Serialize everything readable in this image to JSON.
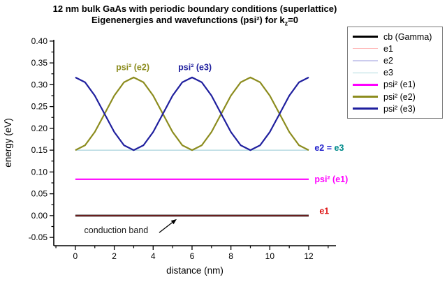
{
  "title": {
    "line1": "12 nm bulk GaAs with periodic boundary conditions (superlattice)",
    "line2_pre": "Eigenenergies and wavefunctions (psi²) for k",
    "line2_sub": "z",
    "line2_post": "=0"
  },
  "legend": {
    "entries": [
      {
        "label": "cb (Gamma)",
        "color": "#000000",
        "thickness": 2.6
      },
      {
        "label": "e1",
        "color": "#ffbdbd",
        "thickness": 1.2
      },
      {
        "label": "e2",
        "color": "#ccccee",
        "thickness": 1.2
      },
      {
        "label": "e3",
        "color": "#aedade",
        "thickness": 1.2
      },
      {
        "label": "psi² (e1)",
        "color": "#ff00ff",
        "thickness": 2.6
      },
      {
        "label": "psi² (e2)",
        "color": "#8c8c1e",
        "thickness": 2.6
      },
      {
        "label": "psi² (e3)",
        "color": "#1f1f9e",
        "thickness": 2.6
      }
    ]
  },
  "chart_data": {
    "type": "line",
    "title": "12 nm bulk GaAs with periodic boundary conditions (superlattice) — Eigenenergies and wavefunctions (psi²) for kz=0",
    "xlabel": "distance (nm)",
    "ylabel": "energy (eV)",
    "xlim": [
      -1.11,
      13.4
    ],
    "ylim": [
      -0.069,
      0.403
    ],
    "grid": false,
    "legend_position": "top-right-outside",
    "x_ticks": {
      "major": [
        0,
        2,
        4,
        6,
        8,
        10,
        12
      ],
      "major_labels": [
        "0",
        "2",
        "4",
        "6",
        "8",
        "10",
        "12"
      ],
      "minor": [
        -1,
        1,
        3,
        5,
        7,
        9,
        11,
        13
      ]
    },
    "y_ticks": {
      "major": [
        0.4,
        0.35,
        0.3,
        0.25,
        0.2,
        0.15,
        0.1,
        0.05,
        0.0,
        -0.05
      ],
      "major_labels": [
        "0.40",
        "0.35",
        "0.30",
        "0.25",
        "0.20",
        "0.15",
        "0.10",
        "0.05",
        "0.00",
        "-0.05"
      ],
      "minor": [
        0.375,
        0.325,
        0.275,
        0.225,
        0.175,
        0.125,
        0.075,
        0.025,
        -0.025
      ]
    },
    "series": [
      {
        "name": "cb (Gamma)",
        "color": "#000000",
        "plot_width": 2.6,
        "x": [
          0,
          12
        ],
        "y": [
          0.0,
          0.0
        ]
      },
      {
        "name": "e1",
        "color": "#ffbdbd",
        "plot_color": "#b03030",
        "plot_width": 1.1,
        "x": [
          0,
          12
        ],
        "y": [
          0.0,
          0.0
        ]
      },
      {
        "name": "e2",
        "color": "#ccccee",
        "plot_width": 1.2,
        "x": [
          0,
          12
        ],
        "y": [
          0.15,
          0.15
        ]
      },
      {
        "name": "e3",
        "color": "#aedade",
        "plot_width": 1.2,
        "x": [
          0,
          12
        ],
        "y": [
          0.15,
          0.15
        ]
      },
      {
        "name": "psi² (e1)",
        "color": "#ff00ff",
        "plot_width": 2.2,
        "x": [
          0,
          12
        ],
        "y": [
          0.0833,
          0.0833
        ]
      },
      {
        "name": "psi² (e2)",
        "color": "#8c8c1e",
        "plot_width": 2.2,
        "x": [
          0,
          0.5,
          1,
          1.5,
          2,
          2.5,
          3,
          3.5,
          4,
          4.5,
          5,
          5.5,
          6,
          6.5,
          7,
          7.5,
          8,
          8.5,
          9,
          9.5,
          10,
          10.5,
          11,
          11.5,
          12
        ],
        "y": [
          0.15,
          0.1612,
          0.1917,
          0.2333,
          0.275,
          0.3055,
          0.3167,
          0.3055,
          0.275,
          0.2333,
          0.1917,
          0.1612,
          0.15,
          0.1612,
          0.1917,
          0.2333,
          0.275,
          0.3055,
          0.3167,
          0.3055,
          0.275,
          0.2333,
          0.1917,
          0.1612,
          0.15
        ]
      },
      {
        "name": "psi² (e3)",
        "color": "#1f1f9e",
        "plot_width": 2.2,
        "x": [
          0,
          0.5,
          1,
          1.5,
          2,
          2.5,
          3,
          3.5,
          4,
          4.5,
          5,
          5.5,
          6,
          6.5,
          7,
          7.5,
          8,
          8.5,
          9,
          9.5,
          10,
          10.5,
          11,
          11.5,
          12
        ],
        "y": [
          0.3167,
          0.3055,
          0.275,
          0.2333,
          0.1917,
          0.1612,
          0.15,
          0.1612,
          0.1917,
          0.2333,
          0.275,
          0.3055,
          0.3167,
          0.3055,
          0.275,
          0.2333,
          0.1917,
          0.1612,
          0.15,
          0.1612,
          0.1917,
          0.2333,
          0.275,
          0.3055,
          0.3167
        ]
      }
    ],
    "annotations": [
      {
        "text": "psi² (e2)",
        "x": 2.95,
        "y": 0.341,
        "color": "#8c8c1e",
        "bold": true,
        "anchor": "middle"
      },
      {
        "text": "psi² (e3)",
        "x": 6.15,
        "y": 0.341,
        "color": "#1f1f9e",
        "bold": true,
        "anchor": "middle"
      },
      {
        "parts": [
          {
            "text": "e2 ",
            "color": "#2222cc"
          },
          {
            "text": "= ",
            "color": "#2222cc"
          },
          {
            "text": "e3",
            "color": "#008b8b"
          }
        ],
        "x": 12.3,
        "y": 0.156,
        "bold": true,
        "anchor": "start"
      },
      {
        "text": "psi² (e1)",
        "x": 12.3,
        "y": 0.084,
        "color": "#ff00ff",
        "bold": true,
        "anchor": "start"
      },
      {
        "text": "e1",
        "x": 12.55,
        "y": 0.011,
        "color": "#dd1111",
        "bold": true,
        "anchor": "start"
      },
      {
        "text": "conduction band",
        "x": 2.1,
        "y": -0.033,
        "color": "#1a1a1a",
        "bold": false,
        "anchor": "middle"
      },
      {
        "type": "arrow",
        "x1": 4.31,
        "y1": -0.039,
        "x2": 5.21,
        "y2": -0.008,
        "color": "#000000"
      }
    ]
  }
}
